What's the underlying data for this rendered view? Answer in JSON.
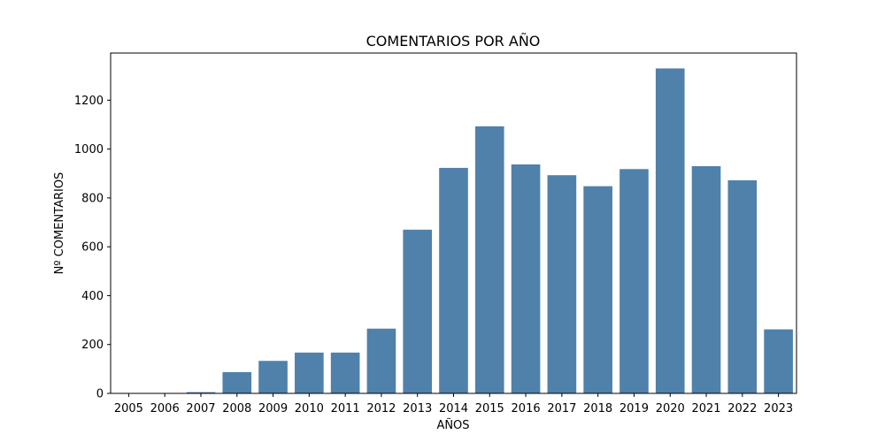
{
  "chart_data": {
    "type": "bar",
    "title": "COMENTARIOS POR AÑO",
    "xlabel": "AÑOS",
    "ylabel": "Nº COMENTARIOS",
    "categories": [
      "2005",
      "2006",
      "2007",
      "2008",
      "2009",
      "2010",
      "2011",
      "2012",
      "2013",
      "2014",
      "2015",
      "2016",
      "2017",
      "2018",
      "2019",
      "2020",
      "2021",
      "2022",
      "2023"
    ],
    "values": [
      1,
      1,
      5,
      87,
      133,
      167,
      167,
      265,
      670,
      923,
      1093,
      937,
      893,
      848,
      918,
      1330,
      930,
      872,
      262
    ],
    "ylim": [
      0,
      1393
    ],
    "yticks": [
      0,
      200,
      400,
      600,
      800,
      1000,
      1200
    ],
    "bar_color": "#4f81aa",
    "grid": false,
    "legend": false
  }
}
